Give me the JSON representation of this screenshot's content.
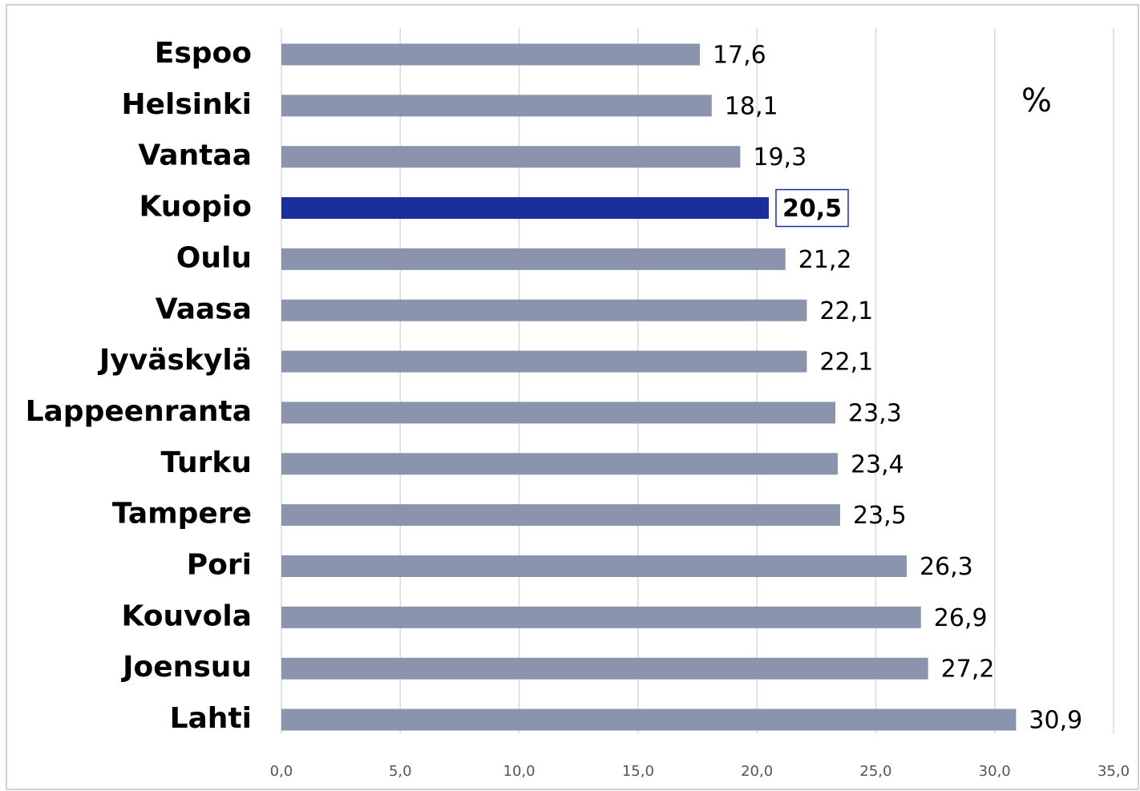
{
  "chart_data": {
    "type": "barh",
    "categories": [
      "Espoo",
      "Helsinki",
      "Vantaa",
      "Kuopio",
      "Oulu",
      "Vaasa",
      "Jyväskylä",
      "Lappeenranta",
      "Turku",
      "Tampere",
      "Pori",
      "Kouvola",
      "Joensuu",
      "Lahti"
    ],
    "values": [
      17.6,
      18.1,
      19.3,
      20.5,
      21.2,
      22.1,
      22.1,
      23.3,
      23.4,
      23.5,
      26.3,
      26.9,
      27.2,
      30.9
    ],
    "value_labels": [
      "17,6",
      "18,1",
      "19,3",
      "20,5",
      "21,2",
      "22,1",
      "22,1",
      "23,3",
      "23,4",
      "23,5",
      "26,3",
      "26,9",
      "27,2",
      "30,9"
    ],
    "color": "#8a94ad",
    "highlight": "Kuopio",
    "highlight_color": "#1c2d9c",
    "annotation": "%",
    "xlim": [
      0,
      35
    ],
    "xticks": [
      {
        "value": 0,
        "label": "0,0"
      },
      {
        "value": 5,
        "label": "5,0"
      },
      {
        "value": 10,
        "label": "10,0"
      },
      {
        "value": 15,
        "label": "15,0"
      },
      {
        "value": 20,
        "label": "20,0"
      },
      {
        "value": 25,
        "label": "25,0"
      },
      {
        "value": 30,
        "label": "30,0"
      },
      {
        "value": 35,
        "label": "35,0"
      }
    ],
    "grid": true
  }
}
